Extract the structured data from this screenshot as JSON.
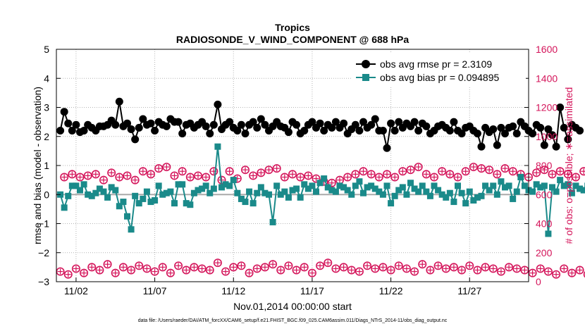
{
  "chart_data": {
    "type": "line",
    "title": "Tropics",
    "subtitle": "RADIOSONDE_V_WIND_COMPONENT @ 688 hPa",
    "xlabel": "Nov.01,2014 00:00:00 start",
    "ylabel": "rmse and bias (model - observation)",
    "y2label": "# of obs: o=possible; ∗=assimilated",
    "footnote": "data file: /Users/raeder/DAI/ATM_forcXX/CAM6_setup/f.e21.FHIST_BGC.f09_025.CAM6assim.011/Diags_NTrS_2014-11/obs_diag_output.nc",
    "xlim": [
      0.75,
      30.75
    ],
    "ylim": [
      -3,
      5
    ],
    "y2lim": [
      0,
      1600
    ],
    "xticks": [
      {
        "value": 2,
        "label": "11/02"
      },
      {
        "value": 7,
        "label": "11/07"
      },
      {
        "value": 12,
        "label": "11/12"
      },
      {
        "value": 17,
        "label": "11/17"
      },
      {
        "value": 22,
        "label": "11/22"
      },
      {
        "value": 27,
        "label": "11/27"
      }
    ],
    "yticks": [
      -3,
      -2,
      -1,
      0,
      1,
      2,
      3,
      4,
      5
    ],
    "y2ticks": [
      0,
      200,
      400,
      600,
      800,
      1000,
      1200,
      1400,
      1600
    ],
    "legend_position": "top-right",
    "series": [
      {
        "name": "obs avg rmse pr = 2.3109",
        "axis": "left",
        "color": "#000000",
        "marker": "circle",
        "values": [
          2.2,
          2.85,
          2.45,
          2.2,
          2.4,
          2.15,
          2.2,
          2.4,
          2.3,
          2.2,
          2.35,
          2.35,
          2.4,
          2.55,
          2.4,
          3.2,
          2.35,
          2.45,
          2.25,
          1.9,
          2.3,
          2.6,
          2.4,
          2.45,
          2.2,
          2.5,
          2.4,
          2.35,
          2.6,
          2.5,
          2.5,
          2.1,
          2.4,
          2.45,
          2.3,
          2.4,
          2.5,
          2.35,
          2.1,
          2.4,
          3.1,
          2.25,
          2.4,
          2.5,
          2.3,
          2.2,
          2.4,
          2.1,
          2.4,
          2.5,
          2.3,
          2.6,
          2.4,
          2.2,
          2.35,
          2.5,
          2.35,
          2.3,
          2.15,
          2.5,
          2.4,
          2.1,
          2.2,
          2.4,
          2.5,
          2.3,
          2.45,
          2.2,
          2.4,
          2.3,
          2.5,
          2.3,
          2.45,
          2.1,
          2.25,
          2.4,
          2.2,
          2.5,
          2.3,
          2.4,
          2.6,
          2.2,
          2.2,
          1.6,
          2.45,
          2.2,
          2.5,
          2.3,
          2.45,
          2.35,
          2.5,
          2.2,
          2.45,
          2.35,
          2.1,
          2.2,
          2.35,
          2.4,
          2.3,
          2.2,
          2.5,
          2.2,
          2.1,
          2.3,
          2.35,
          2.2,
          2.1,
          1.65,
          2.3,
          2.15,
          2.25,
          1.7,
          2.3,
          2.1,
          2.3,
          2.35,
          2.1,
          2.5,
          2.35,
          2.2,
          2.1,
          2.4,
          2.3,
          1.7,
          2.25,
          2.05,
          1.65,
          3.0,
          2.3,
          1.9,
          2.4,
          2.3,
          2.2
        ]
      },
      {
        "name": "obs avg bias pr = 0.094895",
        "axis": "left",
        "color": "#1a8a8a",
        "marker": "square",
        "values": [
          0.0,
          -0.45,
          -0.05,
          0.3,
          0.3,
          0.15,
          0.35,
          0.0,
          -0.05,
          0.05,
          0.2,
          0.1,
          -0.1,
          0.25,
          0.15,
          -0.4,
          -0.25,
          -0.75,
          -1.2,
          -0.05,
          -0.3,
          -0.15,
          0.1,
          -0.25,
          -0.2,
          0.3,
          0.0,
          0.05,
          0.1,
          -0.3,
          0.35,
          0.35,
          -0.3,
          -0.35,
          0.05,
          0.15,
          0.2,
          0.3,
          0.05,
          0.2,
          1.65,
          0.25,
          0.35,
          0.3,
          0.5,
          0.05,
          -0.15,
          -0.25,
          0.1,
          -0.3,
          0.05,
          0.25,
          0.05,
          0.0,
          -0.95,
          0.3,
          0.0,
          0.1,
          -0.1,
          0.15,
          0.2,
          -0.1,
          0.35,
          0.2,
          0.3,
          0.1,
          0.4,
          0.55,
          0.25,
          0.15,
          0.1,
          0.3,
          0.25,
          0.15,
          0.0,
          0.3,
          0.45,
          0.05,
          0.25,
          0.3,
          0.2,
          0.1,
          0.0,
          0.3,
          -0.3,
          -0.05,
          0.15,
          0.25,
          0.0,
          0.4,
          0.2,
          0.1,
          0.3,
          0.1,
          -0.05,
          0.3,
          0.15,
          0.0,
          -0.1,
          0.05,
          -0.25,
          0.3,
          0.05,
          -0.3,
          0.1,
          -0.2,
          -0.1,
          -0.05,
          0.3,
          0.15,
          0.3,
          0.0,
          0.45,
          0.25,
          0.3,
          -0.15,
          0.1,
          0.6,
          0.3,
          0.15,
          0.1,
          0.35,
          0.25,
          0.3,
          -1.35,
          0.25,
          0.1,
          0.5,
          0.3,
          0.35,
          0.05,
          0.3,
          0.2,
          0.15,
          0.3
        ]
      },
      {
        "name": "# of obs possible (o)",
        "axis": "right",
        "color": "#d4145a",
        "marker": "circle-open",
        "values": [
          70,
          720,
          50,
          740,
          90,
          720,
          60,
          730,
          100,
          740,
          80,
          700,
          120,
          750,
          60,
          720,
          100,
          730,
          80,
          700,
          110,
          760,
          90,
          740,
          70,
          780,
          100,
          790,
          60,
          730,
          110,
          760,
          80,
          720,
          100,
          730,
          90,
          720,
          80,
          760,
          130,
          700,
          70,
          760,
          100,
          710,
          110,
          770,
          60,
          730,
          90,
          750,
          100,
          770,
          120,
          780,
          80,
          720,
          110,
          740,
          80,
          720,
          100,
          730,
          60,
          710,
          110,
          690,
          130,
          680,
          90,
          700,
          100,
          720,
          80,
          740,
          70,
          760,
          110,
          740,
          90,
          720,
          100,
          740,
          80,
          720,
          110,
          760,
          90,
          770,
          70,
          790,
          120,
          740,
          80,
          720,
          110,
          760,
          90,
          740,
          100,
          720,
          80,
          760,
          110,
          790,
          80,
          780,
          100,
          770,
          90,
          740,
          70,
          780,
          100,
          760,
          90,
          740,
          80,
          720,
          60,
          750,
          90,
          770,
          70,
          740,
          50,
          760,
          90,
          740,
          60,
          720,
          80,
          760,
          50,
          780,
          0
        ]
      }
    ]
  }
}
